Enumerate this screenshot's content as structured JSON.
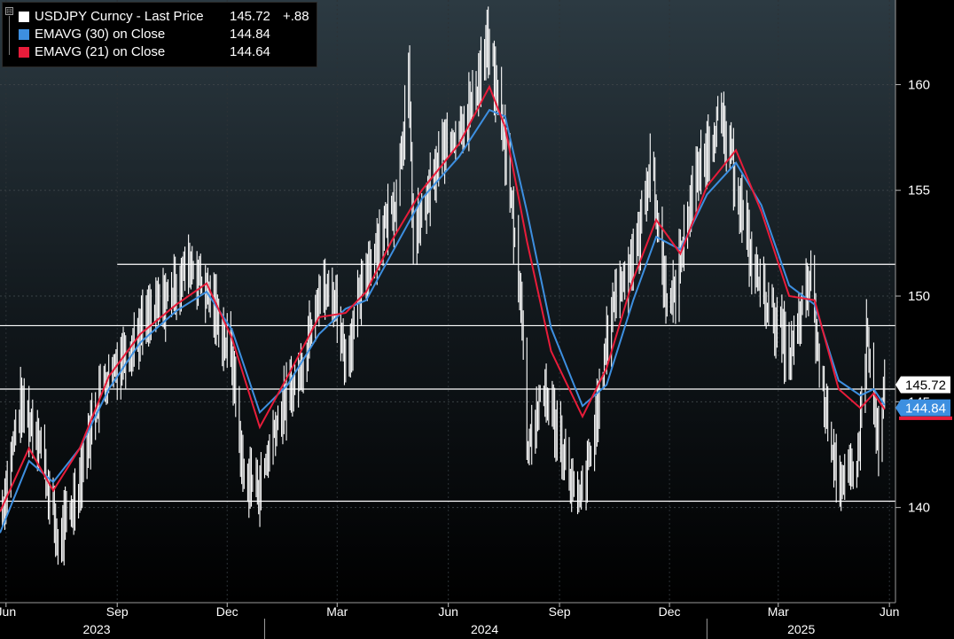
{
  "legend": {
    "toggle": "⊟",
    "items": [
      {
        "name": "USDJPY Curncy - Last Price",
        "value": "145.72",
        "change": "+.88",
        "color": "#ffffff"
      },
      {
        "name": "EMAVG (30)  on Close",
        "value": "144.84",
        "change": "",
        "color": "#3d8fe0"
      },
      {
        "name": "EMAVG (21)  on Close",
        "value": "144.64",
        "change": "",
        "color": "#e81c3a"
      }
    ]
  },
  "chart_data": {
    "type": "line",
    "ylim": [
      135.5,
      164
    ],
    "yticks": [
      140,
      145,
      150,
      155,
      160
    ],
    "ytick_labels": [
      "140",
      "145",
      "150",
      "155",
      "160"
    ],
    "ylabel": "",
    "xlabel": "",
    "x_range": [
      "2023-05-27",
      "2025-06-06"
    ],
    "x_tick_labels": [
      {
        "date": "2023-06-01",
        "label": "Jun"
      },
      {
        "date": "2023-09-01",
        "label": "Sep"
      },
      {
        "date": "2023-12-01",
        "label": "Dec"
      },
      {
        "date": "2024-03-01",
        "label": "Mar"
      },
      {
        "date": "2024-06-01",
        "label": "Jun"
      },
      {
        "date": "2024-09-01",
        "label": "Sep"
      },
      {
        "date": "2024-12-01",
        "label": "Dec"
      },
      {
        "date": "2025-03-01",
        "label": "Mar"
      },
      {
        "date": "2025-06-01",
        "label": "Jun"
      }
    ],
    "year_labels": [
      {
        "date": "2023-08-15",
        "label": "2023"
      },
      {
        "date": "2024-07-01",
        "label": "2024"
      },
      {
        "date": "2025-03-20",
        "label": "2025"
      }
    ],
    "year_separators": [
      "2024-01-01",
      "2025-01-01"
    ],
    "grid": true,
    "legend_position": "top-left",
    "horizontal_lines": [
      {
        "y": 151.5,
        "from": "2023-09-01"
      },
      {
        "y": 148.6,
        "from": "2023-05-27"
      },
      {
        "y": 145.6,
        "from": "2023-05-27"
      },
      {
        "y": 140.3,
        "from": "2023-05-27"
      }
    ],
    "last_value_tags": [
      {
        "value": "145.72",
        "y": 145.72,
        "color": "#ffffff",
        "text_color": "#000000"
      },
      {
        "value": "144.84",
        "y": 144.84,
        "color": "#3d8fe0",
        "text_color": "#ffffff"
      }
    ],
    "price_series": {
      "name": "USDJPY Curncy - Last Price",
      "color": "#ffffff",
      "points": [
        [
          "2023-05-29",
          140.0
        ],
        [
          "2023-06-12",
          144.8
        ],
        [
          "2023-06-28",
          143.5
        ],
        [
          "2023-07-14",
          138.2
        ],
        [
          "2023-07-28",
          140.5
        ],
        [
          "2023-08-18",
          145.8
        ],
        [
          "2023-09-15",
          148.0
        ],
        [
          "2023-10-10",
          149.8
        ],
        [
          "2023-11-01",
          151.6
        ],
        [
          "2023-11-16",
          150.0
        ],
        [
          "2023-12-05",
          147.0
        ],
        [
          "2023-12-14",
          141.5
        ],
        [
          "2023-12-28",
          141.0
        ],
        [
          "2024-01-10",
          144.0
        ],
        [
          "2024-01-31",
          146.5
        ],
        [
          "2024-02-13",
          150.3
        ],
        [
          "2024-02-28",
          149.9
        ],
        [
          "2024-03-08",
          147.0
        ],
        [
          "2024-03-27",
          151.6
        ],
        [
          "2024-04-18",
          154.6
        ],
        [
          "2024-04-29",
          160.2
        ],
        [
          "2024-05-03",
          152.5
        ],
        [
          "2024-05-28",
          157.0
        ],
        [
          "2024-06-20",
          159.0
        ],
        [
          "2024-07-03",
          161.9
        ],
        [
          "2024-07-16",
          158.0
        ],
        [
          "2024-07-31",
          150.0
        ],
        [
          "2024-08-05",
          143.0
        ],
        [
          "2024-08-20",
          145.5
        ],
        [
          "2024-09-06",
          142.3
        ],
        [
          "2024-09-16",
          139.9
        ],
        [
          "2024-09-27",
          142.5
        ],
        [
          "2024-10-15",
          149.8
        ],
        [
          "2024-11-05",
          152.5
        ],
        [
          "2024-11-15",
          156.5
        ],
        [
          "2024-11-27",
          150.5
        ],
        [
          "2024-12-03",
          149.5
        ],
        [
          "2024-12-18",
          154.5
        ],
        [
          "2025-01-10",
          158.5
        ],
        [
          "2025-01-23",
          156.0
        ],
        [
          "2025-02-07",
          151.5
        ],
        [
          "2025-02-24",
          149.2
        ],
        [
          "2025-03-11",
          147.0
        ],
        [
          "2025-03-28",
          151.0
        ],
        [
          "2025-04-04",
          146.5
        ],
        [
          "2025-04-22",
          140.6
        ],
        [
          "2025-05-06",
          142.5
        ],
        [
          "2025-05-13",
          148.2
        ],
        [
          "2025-05-23",
          142.5
        ],
        [
          "2025-05-28",
          145.7
        ]
      ]
    },
    "series": [
      {
        "name": "EMAVG (30)  on Close",
        "color": "#3d8fe0",
        "points": [
          [
            "2023-05-27",
            138.8
          ],
          [
            "2023-06-20",
            142.2
          ],
          [
            "2023-07-10",
            141.2
          ],
          [
            "2023-08-01",
            142.8
          ],
          [
            "2023-08-25",
            145.6
          ],
          [
            "2023-09-20",
            147.8
          ],
          [
            "2023-10-20",
            149.3
          ],
          [
            "2023-11-14",
            150.2
          ],
          [
            "2023-12-05",
            148.4
          ],
          [
            "2023-12-28",
            144.5
          ],
          [
            "2024-01-20",
            145.8
          ],
          [
            "2024-02-15",
            148.2
          ],
          [
            "2024-03-08",
            149.4
          ],
          [
            "2024-03-25",
            149.8
          ],
          [
            "2024-04-15",
            152.0
          ],
          [
            "2024-05-10",
            154.6
          ],
          [
            "2024-06-10",
            156.6
          ],
          [
            "2024-07-05",
            158.8
          ],
          [
            "2024-07-18",
            158.5
          ],
          [
            "2024-08-05",
            154.0
          ],
          [
            "2024-08-25",
            148.5
          ],
          [
            "2024-09-20",
            144.8
          ],
          [
            "2024-10-10",
            145.8
          ],
          [
            "2024-11-01",
            149.8
          ],
          [
            "2024-11-20",
            152.8
          ],
          [
            "2024-12-10",
            152.2
          ],
          [
            "2025-01-01",
            154.8
          ],
          [
            "2025-01-25",
            156.3
          ],
          [
            "2025-02-15",
            154.3
          ],
          [
            "2025-03-10",
            150.5
          ],
          [
            "2025-03-31",
            149.6
          ],
          [
            "2025-04-20",
            146.0
          ],
          [
            "2025-05-08",
            145.3
          ],
          [
            "2025-05-19",
            145.6
          ],
          [
            "2025-05-28",
            144.84
          ]
        ]
      },
      {
        "name": "EMAVG (21)  on Close",
        "color": "#e81c3a",
        "points": [
          [
            "2023-05-27",
            139.8
          ],
          [
            "2023-06-20",
            142.8
          ],
          [
            "2023-07-10",
            140.8
          ],
          [
            "2023-08-01",
            142.8
          ],
          [
            "2023-08-25",
            146.2
          ],
          [
            "2023-09-20",
            148.2
          ],
          [
            "2023-10-20",
            149.6
          ],
          [
            "2023-11-14",
            150.6
          ],
          [
            "2023-12-05",
            148.0
          ],
          [
            "2023-12-28",
            143.8
          ],
          [
            "2024-01-20",
            146.2
          ],
          [
            "2024-02-15",
            149.0
          ],
          [
            "2024-03-08",
            149.2
          ],
          [
            "2024-03-25",
            150.2
          ],
          [
            "2024-04-15",
            152.6
          ],
          [
            "2024-05-10",
            155.0
          ],
          [
            "2024-06-10",
            157.2
          ],
          [
            "2024-07-05",
            159.9
          ],
          [
            "2024-07-18",
            158.0
          ],
          [
            "2024-08-05",
            152.6
          ],
          [
            "2024-08-25",
            147.4
          ],
          [
            "2024-09-20",
            144.3
          ],
          [
            "2024-10-10",
            146.6
          ],
          [
            "2024-11-01",
            150.8
          ],
          [
            "2024-11-20",
            153.6
          ],
          [
            "2024-12-10",
            152.0
          ],
          [
            "2025-01-01",
            155.2
          ],
          [
            "2025-01-25",
            156.9
          ],
          [
            "2025-02-15",
            154.0
          ],
          [
            "2025-03-10",
            150.0
          ],
          [
            "2025-03-31",
            149.8
          ],
          [
            "2025-04-20",
            145.6
          ],
          [
            "2025-05-08",
            144.7
          ],
          [
            "2025-05-19",
            145.4
          ],
          [
            "2025-05-28",
            144.64
          ]
        ]
      }
    ]
  }
}
